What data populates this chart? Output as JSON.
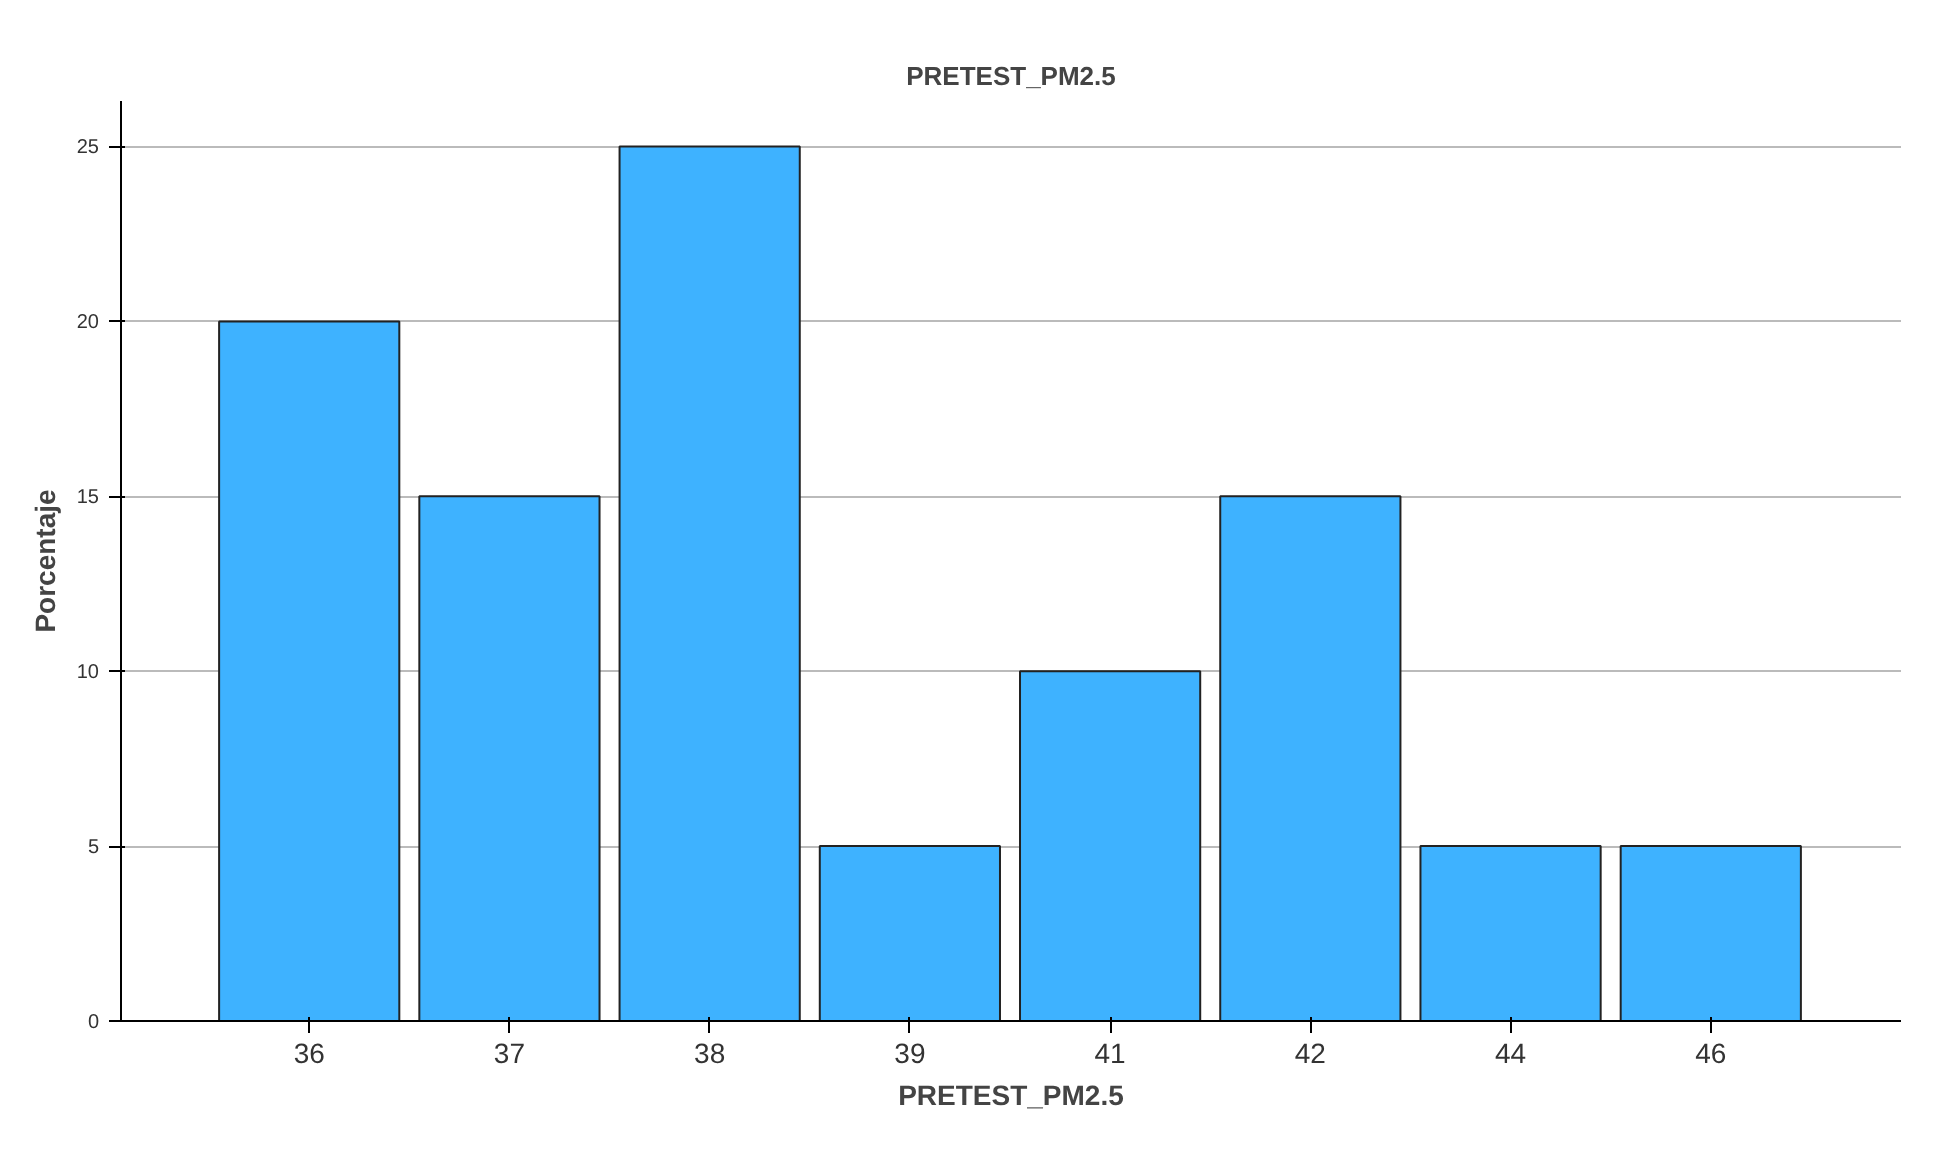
{
  "chart_data": {
    "type": "bar",
    "title": "PRETEST_PM2.5",
    "xlabel": "PRETEST_PM2.5",
    "ylabel": "Porcentaje",
    "categories": [
      "36",
      "37",
      "38",
      "39",
      "41",
      "42",
      "44",
      "46"
    ],
    "values": [
      20,
      15,
      25,
      5,
      10,
      15,
      5,
      5
    ],
    "color": "#3eb2ff",
    "ylim": [
      0,
      26.3
    ],
    "yticks": [
      0,
      5,
      10,
      15,
      20,
      25
    ],
    "grid": "y"
  }
}
